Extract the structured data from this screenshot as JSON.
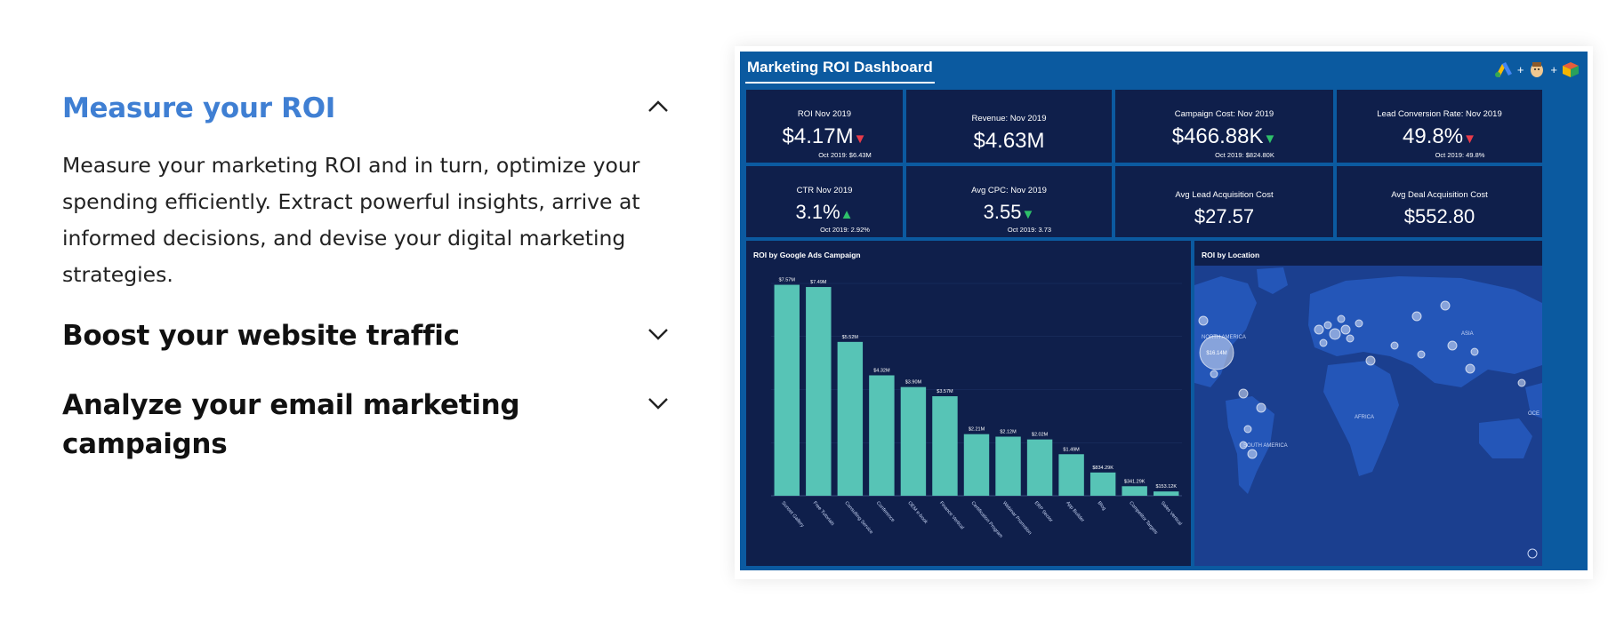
{
  "accordion": {
    "items": [
      {
        "title": "Measure your ROI",
        "expanded": true,
        "body": "Measure your marketing ROI and in turn, optimize your spending efficiently. Extract powerful insights, arrive at informed decisions, and devise your digital marketing strategies."
      },
      {
        "title": "Boost your website traffic",
        "expanded": false
      },
      {
        "title": "Analyze your email marketing campaigns",
        "expanded": false
      }
    ],
    "active_color": "#3f7fd3"
  },
  "dashboard": {
    "title": "Marketing ROI Dashboard",
    "logo_separator": "+",
    "kpis": [
      {
        "label": "ROI Nov 2019",
        "value": "$4.17M",
        "trend": "down",
        "comparison": "Oct 2019: $6.43M"
      },
      {
        "label": "Revenue: Nov 2019",
        "value": "$4.63M",
        "trend": "",
        "comparison": ""
      },
      {
        "label": "Campaign Cost: Nov 2019",
        "value": "$466.88K",
        "trend": "down-green",
        "comparison": "Oct 2019: $824.80K"
      },
      {
        "label": "Lead Conversion Rate: Nov 2019",
        "value": "49.8%",
        "trend": "down",
        "comparison": "Oct 2019: 49.8%"
      },
      {
        "label": "CTR Nov 2019",
        "value": "3.1%",
        "trend": "up",
        "comparison": "Oct 2019: 2.92%"
      },
      {
        "label": "Avg CPC: Nov 2019",
        "value": "3.55",
        "trend": "down-green",
        "comparison": "Oct 2019: 3.73"
      },
      {
        "label": "Avg Lead Acquisition Cost",
        "value": "$27.57",
        "trend": "",
        "comparison": ""
      },
      {
        "label": "Avg Deal Acquisition Cost",
        "value": "$552.80",
        "trend": "",
        "comparison": ""
      }
    ],
    "bar_panel_title": "ROI by Google Ads Campaign",
    "map_panel_title": "ROI by Location",
    "map": {
      "labels": [
        "NORTH AMERICA",
        "SOUTH AMERICA",
        "AFRICA",
        "ASIA",
        "OCE"
      ],
      "bubble_label": "$16.14M"
    }
  },
  "chart_data": {
    "type": "bar",
    "title": "ROI by Google Ads Campaign",
    "categories": [
      "Sunset Gallery",
      "Free Tutorials",
      "Consulting Service",
      "Conference",
      "OEM e-book",
      "Finance Vertical",
      "Certification Program",
      "Webinar Promotion",
      "ERP Sector",
      "App Builder",
      "Blog",
      "Competitor Targets",
      "Sales Vertical"
    ],
    "values": [
      7.57,
      7.49,
      5.52,
      4.32,
      3.9,
      3.57,
      2.21,
      2.12,
      2.02,
      1.49,
      0.83429,
      0.34129,
      0.15312
    ],
    "value_labels": [
      "$7.57M",
      "$7.49M",
      "$5.52M",
      "$4.32M",
      "$3.90M",
      "$3.57M",
      "$2.21M",
      "$2.12M",
      "$2.02M",
      "$1.49M",
      "$834.29K",
      "$341.29K",
      "$153.12K"
    ],
    "bar_color": "#57c4b6",
    "ylim": [
      0,
      8
    ]
  }
}
